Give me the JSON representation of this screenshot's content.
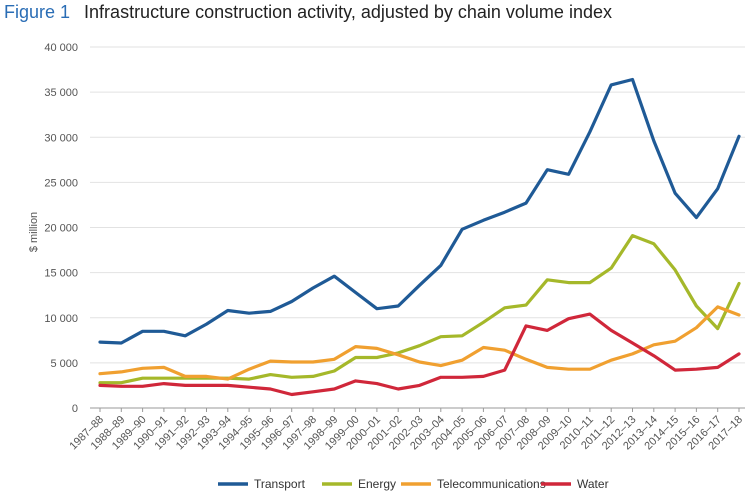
{
  "figure": {
    "label": "Figure 1",
    "title": "Infrastructure construction activity, adjusted by chain volume index"
  },
  "chart_data": {
    "type": "line",
    "ylabel": "$ million",
    "ylim": [
      0,
      40000
    ],
    "yticks": [
      0,
      5000,
      10000,
      15000,
      20000,
      25000,
      30000,
      35000,
      40000
    ],
    "ytick_labels": [
      "0",
      "5 000",
      "10 000",
      "15 000",
      "20 000",
      "25 000",
      "30 000",
      "35 000",
      "40 000"
    ],
    "grid": true,
    "legend_position": "bottom",
    "categories": [
      "1987–88",
      "1988–89",
      "1989–90",
      "1990–91",
      "1991–92",
      "1992–93",
      "1993–94",
      "1994–95",
      "1995–96",
      "1996–97",
      "1997–98",
      "1998–99",
      "1999–00",
      "2000–01",
      "2001–02",
      "2002–03",
      "2003–04",
      "2004–05",
      "2005–06",
      "2006–07",
      "2007–08",
      "2008–09",
      "2009–10",
      "2010–11",
      "2011–12",
      "2012–13",
      "2013–14",
      "2014–15",
      "2015–16",
      "2016–17",
      "2017–18"
    ],
    "series": [
      {
        "name": "Transport",
        "color": "#1f5a96",
        "values": [
          7300,
          7200,
          8500,
          8500,
          8000,
          9300,
          10800,
          10500,
          10700,
          11800,
          13300,
          14600,
          12800,
          11000,
          11300,
          13600,
          15800,
          19800,
          20800,
          21700,
          22700,
          26400,
          25900,
          30600,
          35800,
          36400,
          29600,
          23800,
          21100,
          24300,
          30100
        ]
      },
      {
        "name": "Energy",
        "color": "#a5b82a",
        "values": [
          2800,
          2800,
          3300,
          3300,
          3300,
          3300,
          3300,
          3200,
          3700,
          3400,
          3500,
          4100,
          5600,
          5600,
          6100,
          6900,
          7900,
          8000,
          9500,
          11100,
          11400,
          14200,
          13900,
          13900,
          15500,
          19100,
          18200,
          15300,
          11300,
          8800,
          13800
        ]
      },
      {
        "name": "Telecommunications",
        "color": "#f0a030",
        "values": [
          3800,
          4000,
          4400,
          4500,
          3500,
          3500,
          3200,
          4300,
          5200,
          5100,
          5100,
          5400,
          6800,
          6600,
          5900,
          5100,
          4700,
          5300,
          6700,
          6400,
          5400,
          4500,
          4300,
          4300,
          5300,
          6000,
          7000,
          7400,
          8900,
          11200,
          10300
        ]
      },
      {
        "name": "Water",
        "color": "#d0273a",
        "values": [
          2500,
          2400,
          2400,
          2700,
          2500,
          2500,
          2500,
          2300,
          2100,
          1500,
          1800,
          2100,
          3000,
          2700,
          2100,
          2500,
          3400,
          3400,
          3500,
          4200,
          9100,
          8600,
          9900,
          10400,
          8600,
          7200,
          5800,
          4200,
          4300,
          4500,
          6000
        ]
      }
    ]
  }
}
